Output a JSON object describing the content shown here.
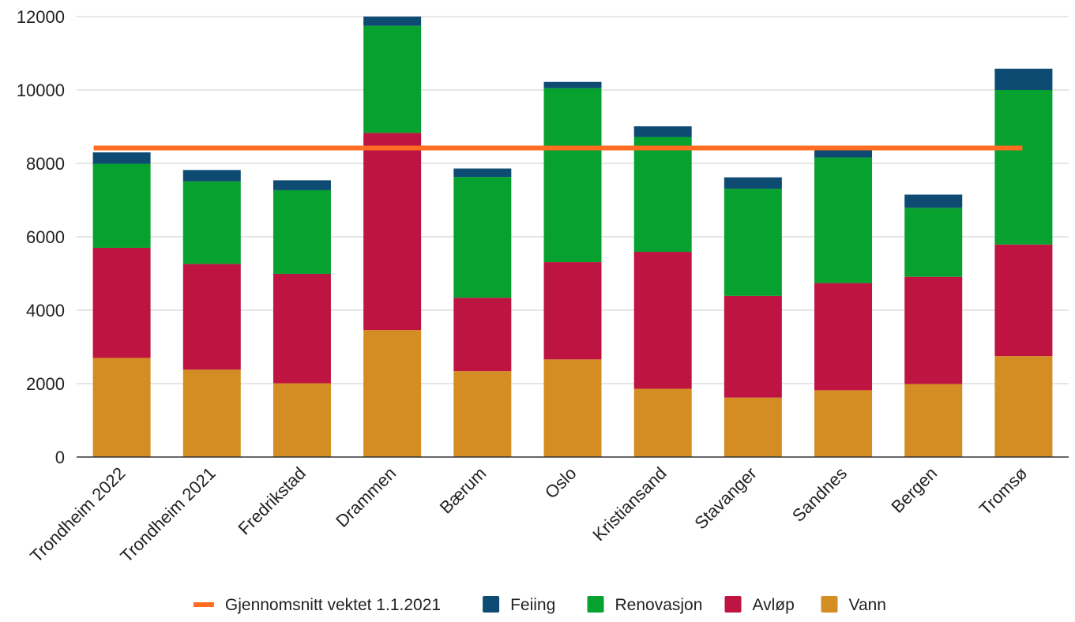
{
  "chart_data": {
    "type": "bar",
    "stacked": true,
    "categories": [
      "Trondheim 2022",
      "Trondheim 2021",
      "Fredrikstad",
      "Drammen",
      "Bærum",
      "Oslo",
      "Kristiansand",
      "Stavanger",
      "Sandnes",
      "Bergen",
      "Tromsø"
    ],
    "series": [
      {
        "name": "Vann",
        "color": "#d38d22",
        "values": [
          2700,
          2380,
          2010,
          3460,
          2340,
          2660,
          1860,
          1620,
          1820,
          1990,
          2750
        ]
      },
      {
        "name": "Avløp",
        "color": "#be1442",
        "values": [
          3000,
          2880,
          2980,
          5370,
          2000,
          2650,
          3730,
          2770,
          2920,
          2920,
          3040
        ]
      },
      {
        "name": "Renovasjon",
        "color": "#07a12f",
        "values": [
          2290,
          2250,
          2280,
          2920,
          3290,
          4740,
          3130,
          2920,
          3420,
          1880,
          4210
        ]
      },
      {
        "name": "Feiing",
        "color": "#0e4b72",
        "values": [
          310,
          310,
          270,
          290,
          230,
          170,
          290,
          310,
          250,
          360,
          580
        ]
      }
    ],
    "line": {
      "name": "Gjennomsnitt vektet 1.1.2021",
      "color": "#ff6d22",
      "value": 8420
    },
    "ylim": [
      0,
      12000
    ],
    "yticks": [
      "0",
      "2000",
      "4000",
      "6000",
      "8000",
      "10000",
      "12000"
    ],
    "grid": true,
    "legend_position": "bottom",
    "title": "",
    "xlabel": "",
    "ylabel": ""
  }
}
